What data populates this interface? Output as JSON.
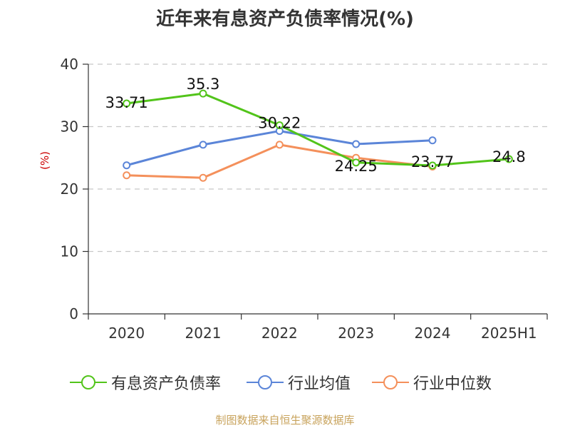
{
  "title": "近年来有息资产负债率情况(%)",
  "source": "制图数据来自恒生聚源数据库",
  "colors": {
    "series1": "#52c41a",
    "series2": "#5b85d8",
    "series3": "#f4905b",
    "ylabel": "#cc0000"
  },
  "chart_data": {
    "type": "line",
    "title": "近年来有息资产负债率情况(%)",
    "ylabel": "(%)",
    "xlabel": "",
    "categories": [
      "2020",
      "2021",
      "2022",
      "2023",
      "2024",
      "2025H1"
    ],
    "ylim": [
      0,
      40
    ],
    "yticks": [
      0,
      10,
      20,
      30,
      40
    ],
    "grid": true,
    "legend_position": "bottom",
    "series": [
      {
        "name": "有息资产负债率",
        "values": [
          33.71,
          35.3,
          30.22,
          24.25,
          23.77,
          24.8
        ],
        "labels": [
          "33.71",
          "35.3",
          "30.22",
          "24.25",
          "23.77",
          "24.8"
        ]
      },
      {
        "name": "行业均值",
        "values": [
          23.8,
          27.1,
          29.3,
          27.2,
          27.8,
          null
        ]
      },
      {
        "name": "行业中位数",
        "values": [
          22.2,
          21.8,
          27.1,
          25.0,
          23.6,
          null
        ]
      }
    ]
  },
  "legend": [
    {
      "label": "有息资产负债率"
    },
    {
      "label": "行业均值"
    },
    {
      "label": "行业中位数"
    }
  ]
}
